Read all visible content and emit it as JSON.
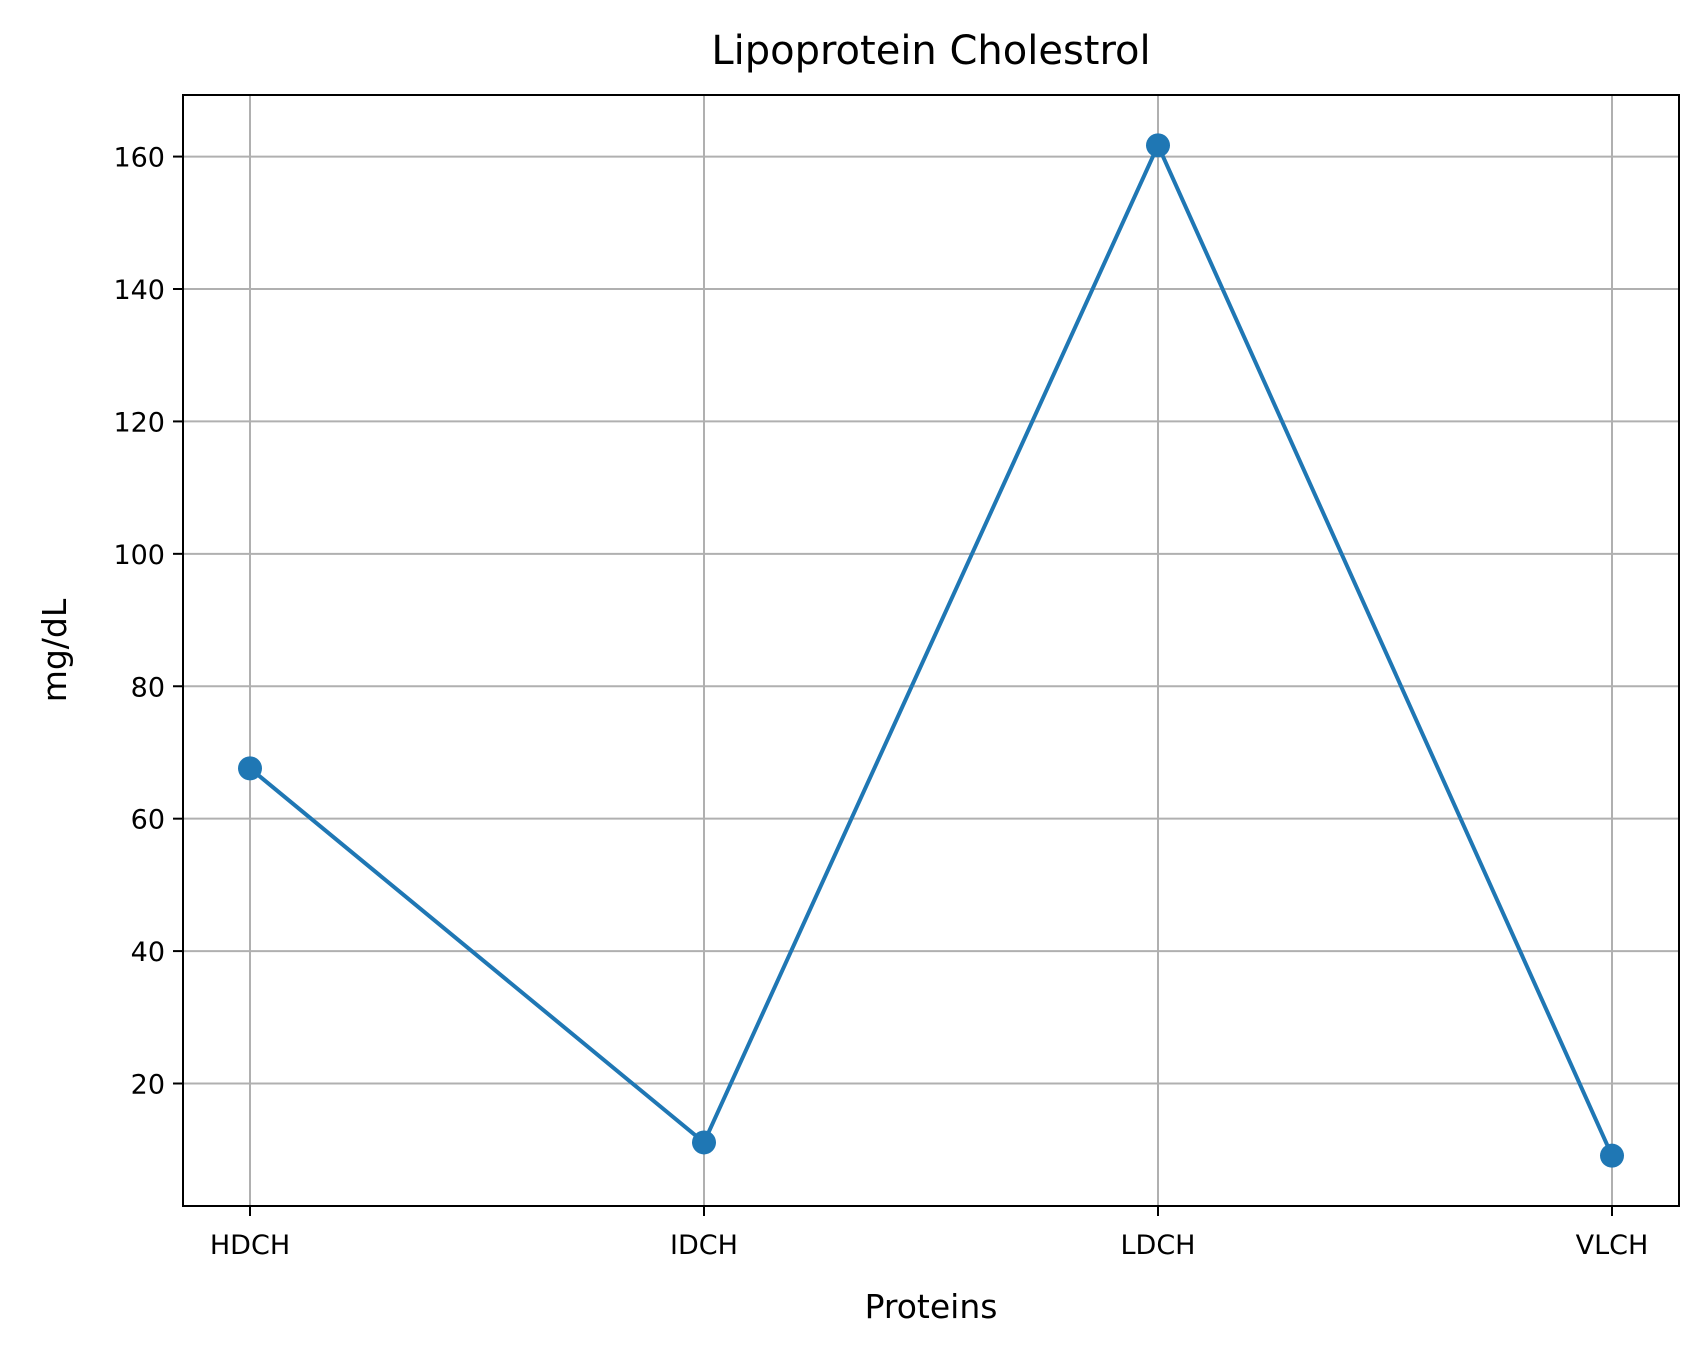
{
  "chart_data": {
    "type": "line",
    "title": "Lipoprotein Cholestrol",
    "xlabel": "Proteins",
    "ylabel": "mg/dL",
    "categories": [
      "HDCH",
      "IDCH",
      "LDCH",
      "VLCH"
    ],
    "series": [
      {
        "values": [
          67.6,
          11.1,
          161.7,
          9.1
        ]
      }
    ],
    "ylim": [
      1.5,
      169.3
    ],
    "yticks": [
      20,
      40,
      60,
      80,
      100,
      120,
      140,
      160
    ],
    "grid": true,
    "legend": "none",
    "colors": {
      "line": "#1f77b4",
      "grid": "#b0b0b0",
      "axes": "#000000"
    }
  }
}
